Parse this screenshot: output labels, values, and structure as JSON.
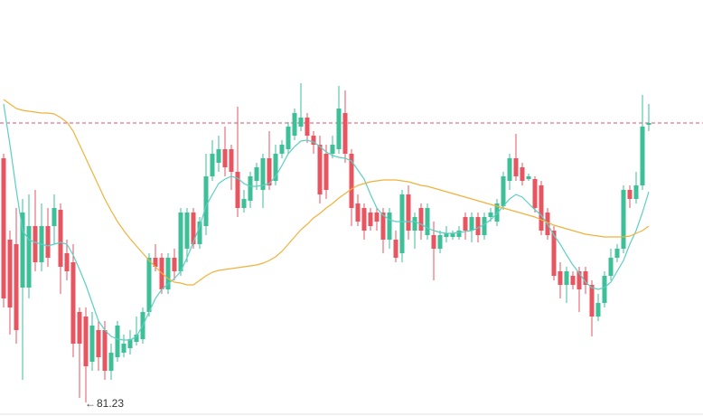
{
  "chart_data": {
    "type": "candlestick",
    "ylim": [
      80.93,
      90.13
    ],
    "up_color": "#3dbf98",
    "down_color": "#e65560",
    "price_line": {
      "value": 87.41,
      "color": "#d9506c"
    },
    "low_marker": 81.23,
    "low_marker_index": 13,
    "open": [
      86.63,
      84.83,
      84.73,
      83.77,
      83.77,
      85.13,
      84.33,
      85.13,
      85.13,
      85.49,
      84.53,
      84.33,
      83.23,
      83.13,
      82.13,
      82.83,
      82.83,
      81.93,
      82.23,
      82.33,
      82.43,
      82.57,
      82.63,
      83.23,
      84.43,
      84.43,
      83.73,
      84.43,
      84.13,
      84.63,
      85.43,
      84.73,
      85.13,
      86.23,
      86.53,
      86.83,
      86.83,
      86.33,
      85.53,
      85.69,
      86.13,
      85.93,
      86.63,
      86.13,
      86.73,
      86.83,
      87.13,
      87.33,
      87.53,
      87.13,
      86.93,
      86.73,
      86.73,
      86.83,
      87.63,
      86.73,
      85.63,
      85.53,
      85.43,
      85.43,
      85.43,
      84.83,
      84.83,
      84.53,
      85.83,
      85.03,
      85.53,
      84.93,
      84.93,
      84.63,
      84.89,
      84.89,
      84.89,
      85.33,
      85.03,
      85.33,
      84.93,
      85.33,
      85.23,
      85.57,
      86.13,
      86.63,
      86.43,
      86.17,
      86.17,
      86.03,
      85.43,
      85.03,
      84.13,
      83.83,
      84.03,
      84.13,
      84.13,
      83.83,
      83.13,
      83.43,
      84.03,
      84.43,
      84.63,
      85.93,
      85.73,
      86.03,
      87.37
    ],
    "high": [
      86.73,
      85.03,
      85.53,
      85.73,
      85.83,
      85.93,
      85.63,
      85.53,
      85.83,
      85.63,
      84.83,
      84.73,
      83.33,
      83.33,
      83.23,
      83.03,
      83.03,
      82.53,
      83.03,
      82.73,
      82.83,
      83.13,
      83.33,
      84.53,
      84.73,
      84.53,
      84.53,
      84.63,
      85.53,
      85.53,
      85.53,
      85.33,
      86.73,
      87.03,
      87.13,
      87.33,
      86.93,
      87.77,
      85.93,
      86.33,
      86.53,
      86.73,
      87.23,
      86.93,
      87.03,
      87.43,
      87.73,
      88.29,
      87.63,
      87.23,
      87.13,
      86.93,
      87.13,
      88.23,
      88.13,
      86.83,
      85.83,
      85.63,
      85.53,
      85.53,
      85.53,
      85.53,
      85.03,
      85.93,
      86.03,
      85.43,
      85.63,
      85.63,
      85.23,
      85.03,
      85.13,
      85.03,
      85.13,
      85.43,
      85.43,
      85.43,
      85.43,
      85.53,
      85.73,
      86.33,
      86.73,
      87.17,
      86.53,
      86.29,
      86.23,
      86.13,
      85.53,
      85.13,
      84.33,
      84.23,
      84.13,
      84.23,
      84.23,
      83.93,
      83.63,
      84.13,
      84.63,
      84.73,
      86.03,
      86.03,
      86.33,
      88.03,
      87.83
    ],
    "low": [
      83.33,
      82.73,
      82.53,
      81.73,
      83.53,
      84.13,
      84.13,
      84.23,
      84.73,
      83.63,
      83.93,
      82.23,
      81.33,
      81.23,
      81.93,
      81.93,
      81.73,
      81.73,
      82.13,
      82.23,
      82.29,
      82.49,
      82.53,
      83.13,
      84.13,
      83.63,
      83.63,
      83.93,
      84.03,
      84.33,
      84.63,
      84.63,
      84.93,
      86.13,
      86.33,
      86.23,
      85.93,
      85.33,
      85.43,
      85.53,
      85.93,
      85.53,
      85.93,
      86.03,
      86.63,
      86.73,
      87.03,
      87.23,
      86.97,
      86.73,
      85.63,
      85.73,
      86.63,
      86.73,
      86.53,
      85.13,
      85.13,
      84.83,
      85.03,
      85.03,
      84.53,
      84.63,
      84.33,
      84.33,
      84.83,
      84.63,
      84.83,
      84.83,
      83.93,
      84.53,
      84.77,
      84.83,
      84.83,
      84.83,
      84.77,
      84.77,
      84.83,
      85.23,
      85.13,
      85.49,
      85.93,
      86.13,
      86.03,
      86.13,
      85.43,
      84.93,
      84.83,
      83.93,
      83.53,
      83.43,
      83.73,
      83.23,
      83.63,
      82.69,
      83.03,
      83.33,
      83.93,
      84.33,
      84.53,
      85.53,
      85.63,
      85.93,
      87.23
    ],
    "close": [
      83.53,
      83.33,
      82.83,
      85.43,
      85.13,
      84.33,
      85.13,
      84.43,
      85.53,
      84.23,
      84.13,
      82.53,
      82.53,
      82.03,
      82.93,
      82.23,
      81.93,
      82.33,
      82.93,
      82.53,
      82.63,
      82.73,
      83.23,
      84.43,
      84.23,
      83.73,
      84.43,
      84.13,
      85.43,
      85.43,
      84.73,
      85.23,
      86.23,
      86.73,
      86.83,
      86.43,
      86.33,
      85.53,
      85.73,
      86.23,
      86.43,
      86.63,
      86.03,
      86.73,
      86.93,
      87.33,
      87.63,
      87.53,
      87.13,
      86.93,
      85.83,
      85.93,
      86.93,
      87.73,
      86.73,
      85.53,
      85.23,
      85.03,
      85.13,
      85.23,
      84.83,
      85.43,
      84.43,
      85.83,
      85.03,
      85.33,
      85.03,
      85.53,
      84.63,
      84.93,
      84.97,
      84.97,
      85.03,
      85.03,
      85.33,
      84.93,
      85.33,
      85.43,
      85.63,
      86.23,
      86.63,
      86.23,
      86.13,
      86.23,
      85.53,
      85.03,
      84.93,
      84.03,
      83.83,
      84.13,
      83.83,
      83.73,
      83.83,
      83.13,
      83.43,
      84.03,
      84.43,
      84.63,
      85.93,
      85.73,
      86.03,
      87.33,
      87.41
    ],
    "series": [
      {
        "color": "#5ccfc3",
        "values": [
          87.83,
          86.93,
          85.93,
          85.03,
          84.83,
          84.77,
          84.73,
          84.69,
          84.73,
          84.77,
          84.73,
          84.49,
          84.17,
          83.83,
          83.43,
          83.03,
          82.83,
          82.69,
          82.63,
          82.61,
          82.61,
          82.69,
          82.93,
          83.23,
          83.53,
          83.73,
          83.85,
          83.97,
          84.13,
          84.43,
          84.77,
          85.13,
          85.57,
          85.83,
          86.07,
          86.17,
          86.23,
          86.19,
          86.07,
          86.01,
          86.01,
          86.03,
          86.07,
          86.23,
          86.47,
          86.73,
          86.89,
          87.01,
          87.03,
          86.99,
          86.89,
          86.77,
          86.69,
          86.65,
          86.63,
          86.57,
          86.37,
          86.17,
          85.83,
          85.53,
          85.37,
          85.27,
          85.23,
          85.23,
          85.23,
          85.23,
          85.17,
          85.09,
          85.03,
          84.99,
          84.97,
          84.97,
          84.99,
          85.01,
          85.03,
          85.09,
          85.17,
          85.27,
          85.41,
          85.57,
          85.73,
          85.83,
          85.77,
          85.63,
          85.49,
          85.37,
          85.17,
          84.93,
          84.73,
          84.49,
          84.27,
          84.09,
          83.89,
          83.77,
          83.73,
          83.77,
          83.89,
          84.13,
          84.37,
          84.73,
          85.03,
          85.43,
          85.89
        ]
      },
      {
        "color": "#f0b23c",
        "values": [
          87.93,
          87.83,
          87.73,
          87.69,
          87.67,
          87.65,
          87.63,
          87.63,
          87.61,
          87.53,
          87.43,
          87.23,
          86.93,
          86.63,
          86.33,
          86.03,
          85.73,
          85.47,
          85.23,
          85.03,
          84.85,
          84.69,
          84.53,
          84.37,
          84.23,
          84.09,
          83.97,
          83.89,
          83.87,
          83.83,
          83.83,
          83.93,
          84.03,
          84.11,
          84.15,
          84.17,
          84.19,
          84.21,
          84.23,
          84.25,
          84.27,
          84.31,
          84.37,
          84.45,
          84.57,
          84.73,
          84.89,
          85.05,
          85.17,
          85.31,
          85.41,
          85.53,
          85.63,
          85.75,
          85.85,
          85.95,
          86.03,
          86.07,
          86.11,
          86.13,
          86.15,
          86.15,
          86.15,
          86.13,
          86.11,
          86.07,
          86.03,
          86.01,
          85.97,
          85.93,
          85.89,
          85.85,
          85.81,
          85.77,
          85.73,
          85.69,
          85.65,
          85.61,
          85.57,
          85.53,
          85.49,
          85.45,
          85.41,
          85.37,
          85.33,
          85.27,
          85.21,
          85.15,
          85.11,
          85.07,
          85.03,
          84.99,
          84.95,
          84.93,
          84.91,
          84.89,
          84.89,
          84.89,
          84.89,
          84.91,
          84.97,
          85.03,
          85.13
        ]
      }
    ]
  }
}
